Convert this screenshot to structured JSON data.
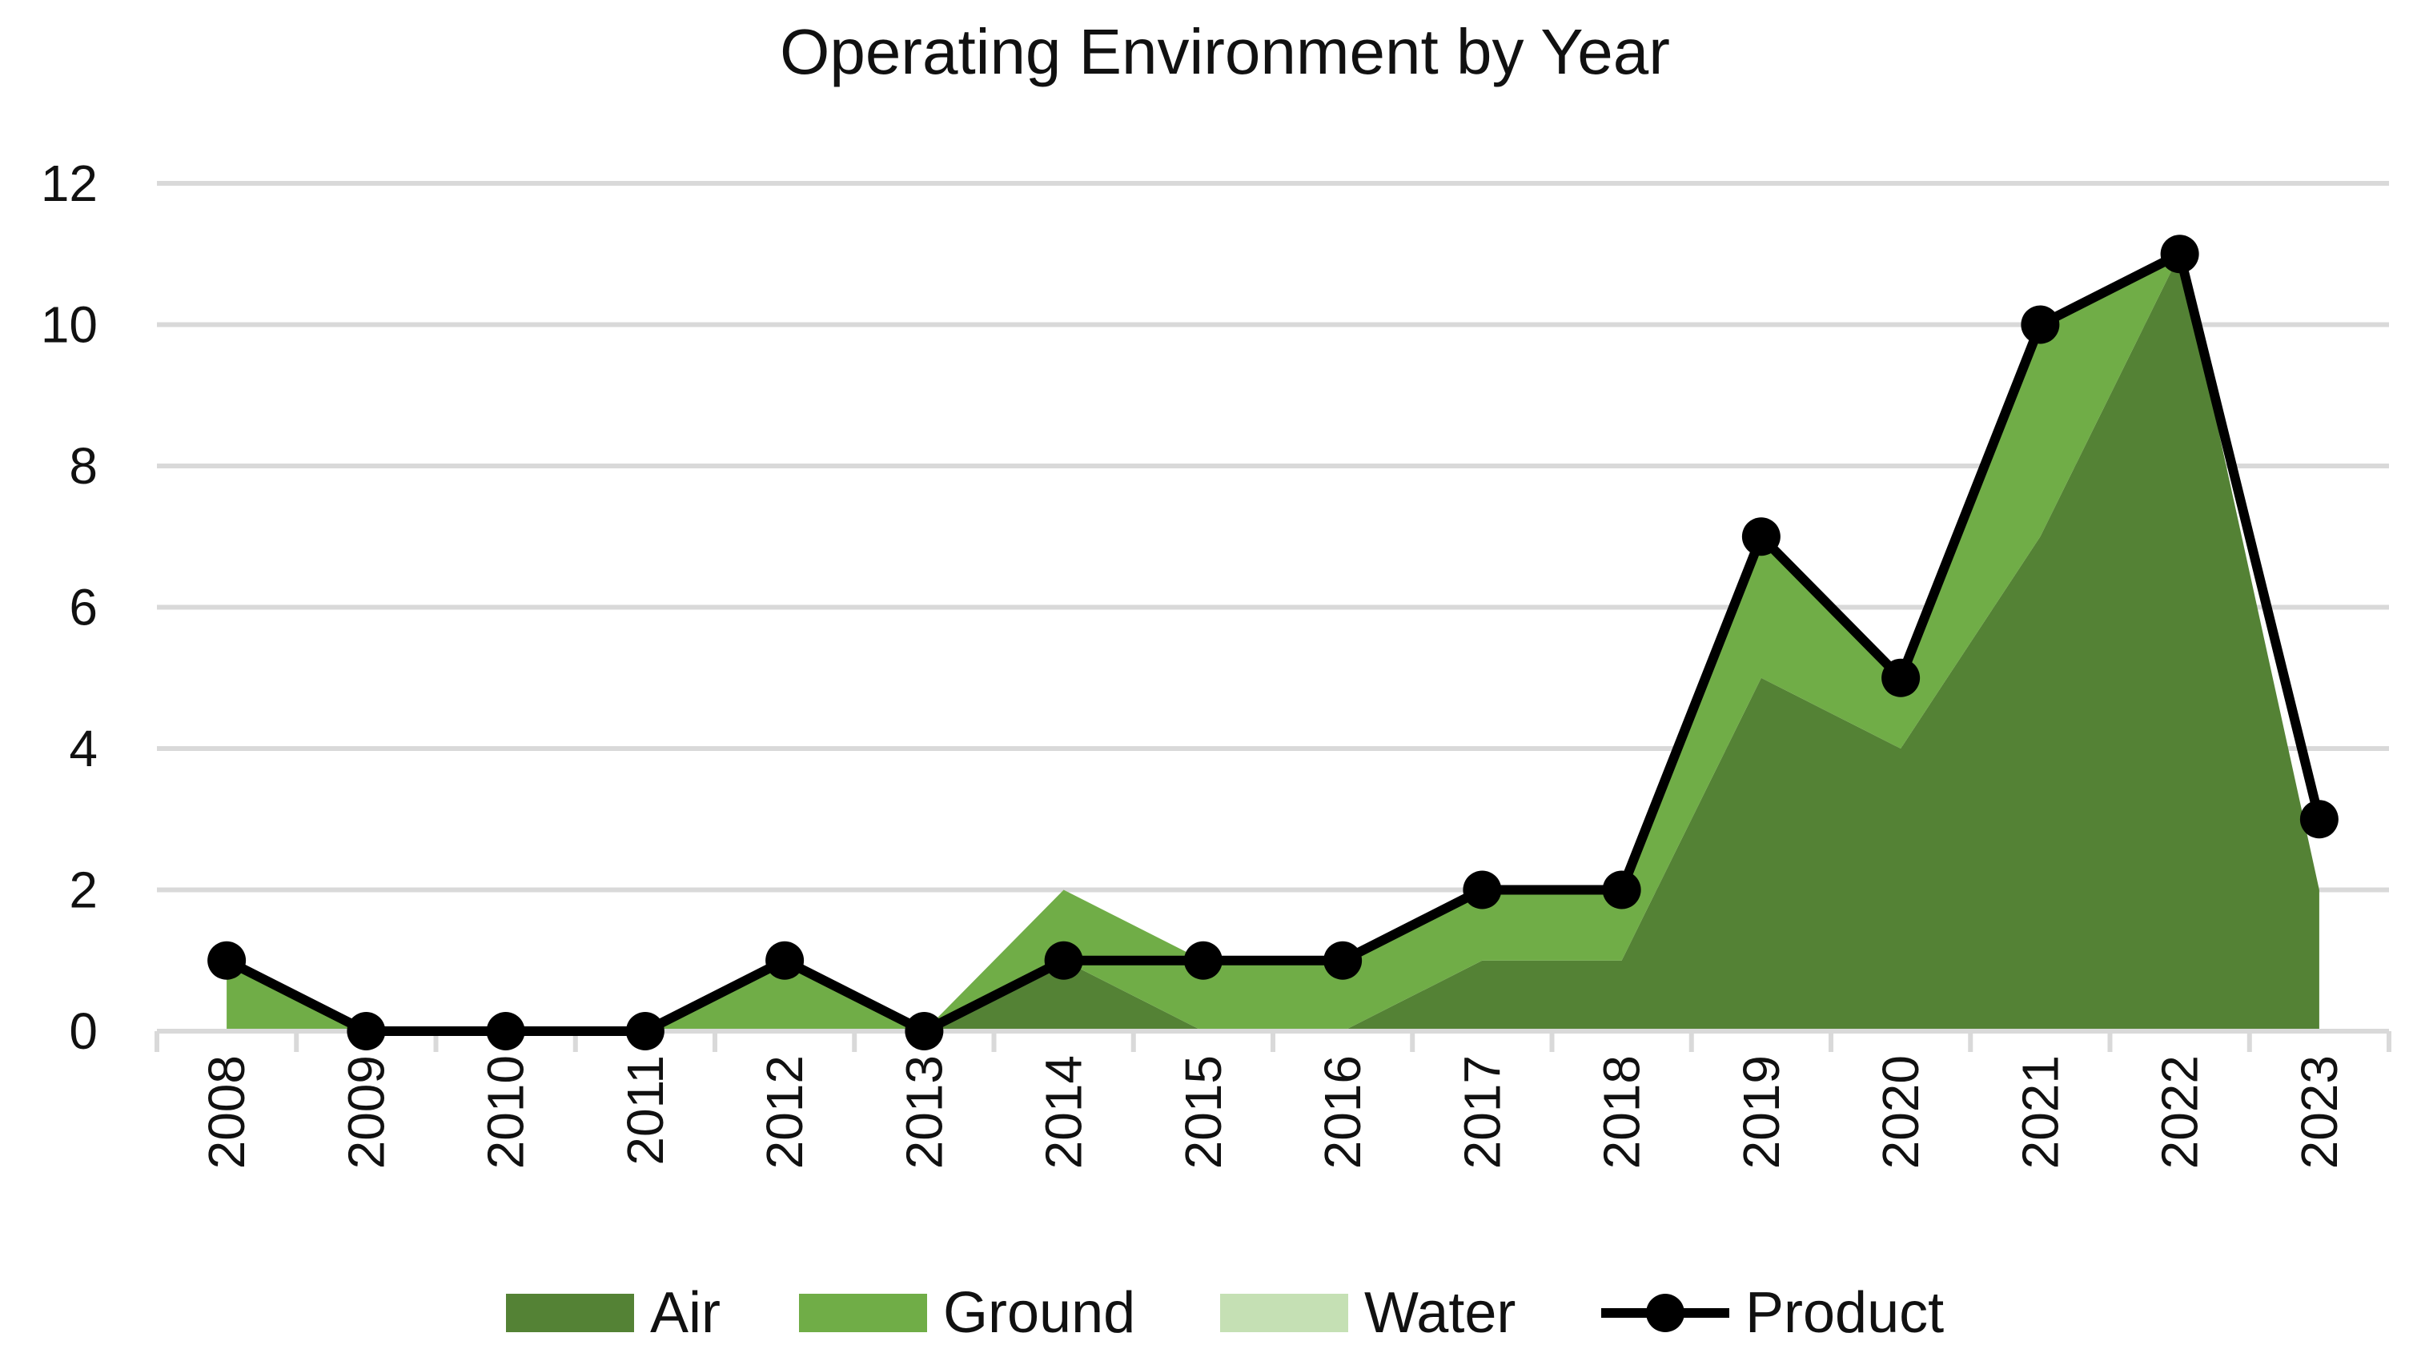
{
  "chart_data": {
    "type": "area",
    "title": "Operating Environment by Year",
    "xlabel": "",
    "ylabel": "",
    "ylim": [
      0,
      12
    ],
    "yticks": [
      0,
      2,
      4,
      6,
      8,
      10,
      12
    ],
    "categories": [
      "2008",
      "2009",
      "2010",
      "2011",
      "2012",
      "2013",
      "2014",
      "2015",
      "2016",
      "2017",
      "2018",
      "2019",
      "2020",
      "2021",
      "2022",
      "2023"
    ],
    "series": [
      {
        "name": "Air",
        "kind": "stacked-area",
        "color": "#548235",
        "values": [
          0,
          0,
          0,
          0,
          0,
          0,
          1,
          0,
          0,
          1,
          1,
          5,
          4,
          7,
          11,
          2
        ]
      },
      {
        "name": "Ground",
        "kind": "stacked-area",
        "color": "#70ad47",
        "values": [
          1,
          0,
          0,
          0,
          1,
          0,
          1,
          1,
          1,
          1,
          1,
          2,
          1,
          3,
          0,
          0
        ]
      },
      {
        "name": "Water",
        "kind": "stacked-area",
        "color": "#c5e0b4",
        "values": [
          0,
          0,
          0,
          0,
          0,
          0,
          0,
          0,
          0,
          0,
          0,
          0,
          0,
          0,
          0,
          0
        ]
      },
      {
        "name": "Product",
        "kind": "line-markers",
        "color": "#000000",
        "values": [
          1,
          0,
          0,
          0,
          1,
          0,
          1,
          1,
          1,
          2,
          2,
          7,
          5,
          10,
          11,
          3
        ]
      }
    ],
    "grid": true,
    "legend": "bottom-center"
  }
}
